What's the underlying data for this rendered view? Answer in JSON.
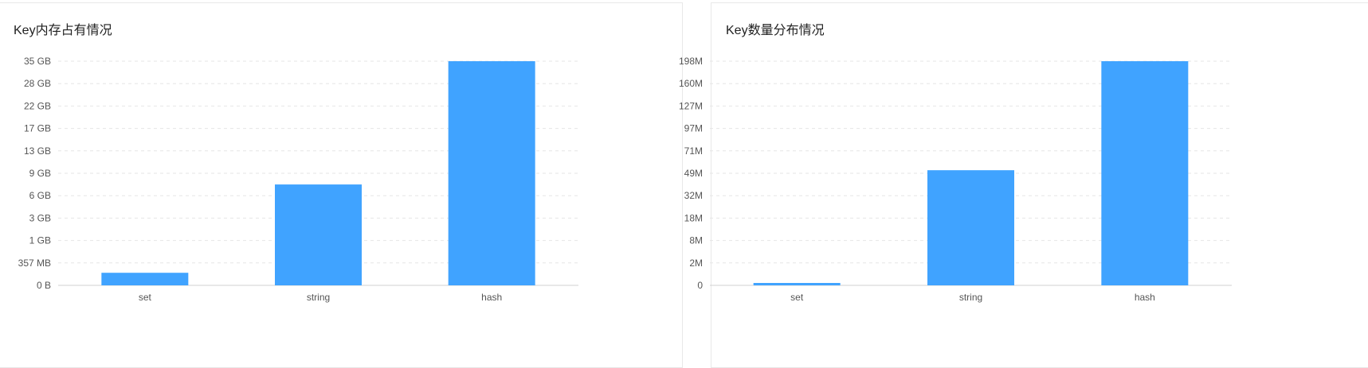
{
  "colors": {
    "bar": "#40a3ff",
    "grid": "#e6e6e6",
    "axis": "#d0d0d0",
    "text": "#555555"
  },
  "chart_data": [
    {
      "type": "bar",
      "title": "Key内存占有情况",
      "categories": [
        "set",
        "string",
        "hash"
      ],
      "y_tick_labels": [
        "0 B",
        "357 MB",
        "1 GB",
        "3 GB",
        "6 GB",
        "9 GB",
        "13 GB",
        "17 GB",
        "22 GB",
        "28 GB",
        "35 GB"
      ],
      "y_tick_values": [
        0,
        0.357,
        1,
        3,
        6,
        9,
        13,
        17,
        22,
        28,
        35
      ],
      "y_unit": "GB",
      "values": [
        0.2,
        7.5,
        35
      ],
      "grid": true,
      "color": "#40a3ff"
    },
    {
      "type": "bar",
      "title": "Key数量分布情况",
      "categories": [
        "set",
        "string",
        "hash"
      ],
      "y_tick_labels": [
        "0",
        "2M",
        "8M",
        "18M",
        "32M",
        "49M",
        "71M",
        "97M",
        "127M",
        "160M",
        "198M"
      ],
      "y_tick_values": [
        0,
        2,
        8,
        18,
        32,
        49,
        71,
        97,
        127,
        160,
        198
      ],
      "y_unit": "M",
      "values": [
        0.2,
        52,
        198
      ],
      "grid": true,
      "color": "#40a3ff"
    }
  ]
}
